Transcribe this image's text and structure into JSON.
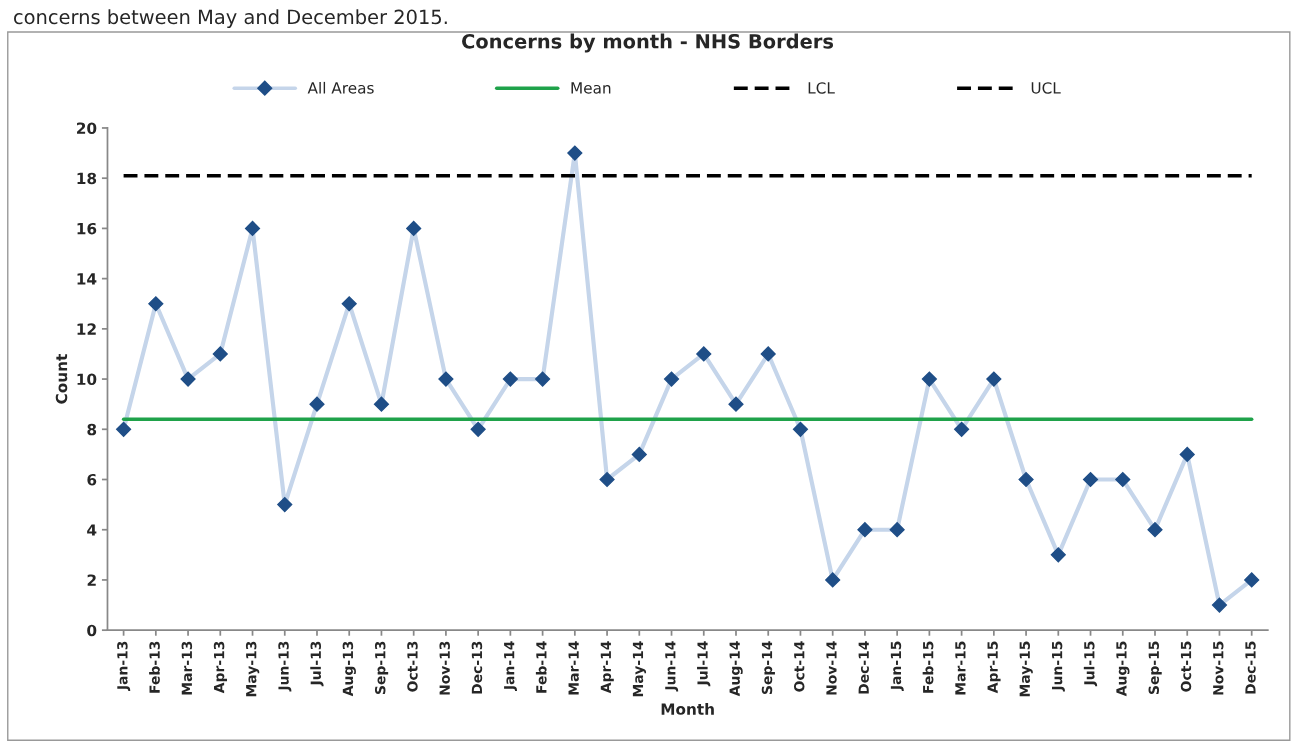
{
  "chart_data": {
    "type": "line",
    "title": "Concerns by month - NHS Borders",
    "xlabel": "Month",
    "ylabel": "Count",
    "annotations": [
      "concerns between May and December 2015."
    ],
    "categories": [
      "Jan-13",
      "Feb-13",
      "Mar-13",
      "Apr-13",
      "May-13",
      "Jun-13",
      "Jul-13",
      "Aug-13",
      "Sep-13",
      "Oct-13",
      "Nov-13",
      "Dec-13",
      "Jan-14",
      "Feb-14",
      "Mar-14",
      "Apr-14",
      "May-14",
      "Jun-14",
      "Jul-14",
      "Aug-14",
      "Sep-14",
      "Oct-14",
      "Nov-14",
      "Dec-14",
      "Jan-15",
      "Feb-15",
      "Mar-15",
      "Apr-15",
      "May-15",
      "Jun-15",
      "Jul-15",
      "Aug-15",
      "Sep-15",
      "Oct-15",
      "Nov-15",
      "Dec-15"
    ],
    "series": [
      {
        "name": "All Areas",
        "color": "#c5d5ea",
        "marker": "diamond",
        "line_style": "solid",
        "values": [
          8,
          13,
          10,
          11,
          16,
          5,
          9,
          13,
          9,
          16,
          10,
          8,
          10,
          10,
          19,
          6,
          7,
          10,
          11,
          9,
          11,
          8,
          2,
          4,
          4,
          10,
          8,
          10,
          6,
          3,
          6,
          6,
          4,
          7,
          1,
          2
        ]
      },
      {
        "name": "Mean",
        "color": "#1fa24a",
        "marker": "none",
        "line_style": "solid",
        "values": [
          8.4,
          8.4,
          8.4,
          8.4,
          8.4,
          8.4,
          8.4,
          8.4,
          8.4,
          8.4,
          8.4,
          8.4,
          8.4,
          8.4,
          8.4,
          8.4,
          8.4,
          8.4,
          8.4,
          8.4,
          8.4,
          8.4,
          8.4,
          8.4,
          8.4,
          8.4,
          8.4,
          8.4,
          8.4,
          8.4,
          8.4,
          8.4,
          8.4,
          8.4,
          8.4,
          8.4
        ]
      },
      {
        "name": "LCL",
        "color": "#000000",
        "marker": "none",
        "line_style": "dashed",
        "values": [
          null,
          null,
          null,
          null,
          null,
          null,
          null,
          null,
          null,
          null,
          null,
          null,
          null,
          null,
          null,
          null,
          null,
          null,
          null,
          null,
          null,
          null,
          null,
          null,
          null,
          null,
          null,
          null,
          null,
          null,
          null,
          null,
          null,
          null,
          null,
          null
        ]
      },
      {
        "name": "UCL",
        "color": "#000000",
        "marker": "none",
        "line_style": "dashed",
        "values": [
          18.1,
          18.1,
          18.1,
          18.1,
          18.1,
          18.1,
          18.1,
          18.1,
          18.1,
          18.1,
          18.1,
          18.1,
          18.1,
          18.1,
          18.1,
          18.1,
          18.1,
          18.1,
          18.1,
          18.1,
          18.1,
          18.1,
          18.1,
          18.1,
          18.1,
          18.1,
          18.1,
          18.1,
          18.1,
          18.1,
          18.1,
          18.1,
          18.1,
          18.1,
          18.1,
          18.1
        ]
      }
    ],
    "ylim": [
      0,
      20
    ],
    "yticks": [
      0,
      2,
      4,
      6,
      8,
      10,
      12,
      14,
      16,
      18,
      20
    ],
    "grid": false,
    "legend": "top"
  }
}
